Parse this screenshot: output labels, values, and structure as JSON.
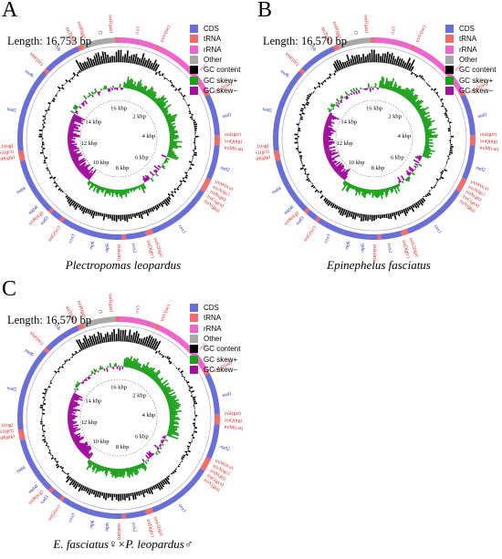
{
  "colors": {
    "cds": "#6a6fd8",
    "trna": "#f26b6b",
    "rrna": "#ee66cc",
    "other": "#a8a8a8",
    "gc_content": "#000000",
    "gc_skew_pos": "#1aa01a",
    "gc_skew_neg": "#a0119e"
  },
  "legend": {
    "cds": "CDS",
    "trna": "tRNA",
    "rrna": "rRNA",
    "other": "Other",
    "gc_content": "GC content",
    "gc_skew_pos": "GC skew+",
    "gc_skew_neg": "GC skew−"
  },
  "kbp_labels": [
    "16 kbp",
    "2 kbp",
    "4 kbp",
    "6 kbp",
    "8 kbp",
    "10 kbp",
    "12 kbp",
    "14 kbp"
  ],
  "panels": [
    {
      "letter": "A",
      "length": "Length: 16,753 bp",
      "caption": "Plectropomas leopardus"
    },
    {
      "letter": "B",
      "length": "Length: 16,570 bp",
      "caption": "Epinephelus fasciatus"
    },
    {
      "letter": "C",
      "length": "Length: 16,570 bp",
      "caption": "E. fasciatus♀×P. leopardus♂"
    }
  ],
  "genes": {
    "control": "D",
    "trnF": "trnF(gaa)",
    "rrnS": "rrnS",
    "trnV": "trnV(tac)",
    "rrnL": "rrnL",
    "trnL2": "trnL2(taa)",
    "nad1": "nad1",
    "trnI": "trnI(gat)",
    "trnQ": "trnQ(ttg)",
    "trnM": "trnM(cat)",
    "nad2": "nad2",
    "trnW": "trnW(tca)",
    "trnA": "trnA(tgc)",
    "trnN": "trnN(gtt)",
    "trnC": "trnC(gca)",
    "trnY": "trnY(gta)",
    "cox1": "cox1",
    "trnS2": "trnS2(tga)",
    "trnD": "trnD(gtc)",
    "cox2": "cox2",
    "trnK": "trnK(ttt)",
    "atp8": "atp8",
    "atp6": "atp6",
    "cox3": "cox3",
    "trnG": "trnG(tcc)",
    "nad3": "nad3",
    "trnR": "trnR(tcg)",
    "nad4l": "nad4l",
    "nad4": "nad4",
    "trnH": "trnH(gtg)",
    "trnS1": "trnS1(gct)",
    "trnL1": "trnL1(tag)",
    "nad5": "nad5",
    "nad6": "nad6",
    "trnE": "trnE(ttc)",
    "cob": "cob",
    "trnT": "trnT(tgt)",
    "trnP": "trnP(tgg)"
  }
}
